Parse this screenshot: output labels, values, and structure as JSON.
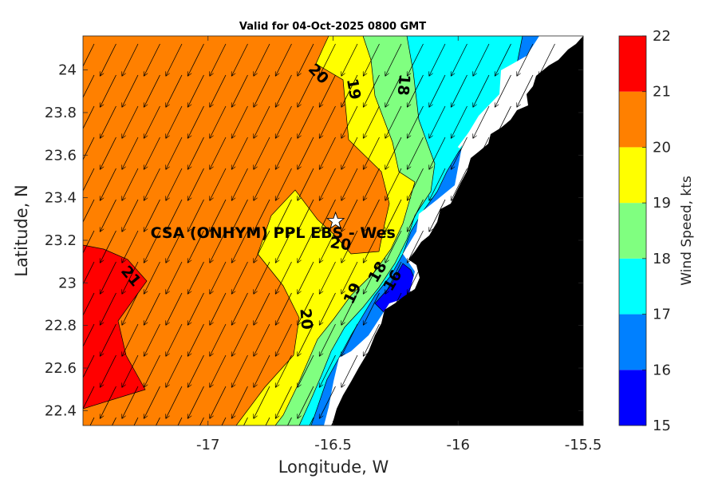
{
  "title": "Valid for 04-Oct-2025 0800 GMT",
  "xlabel": "Longitude, W",
  "ylabel": "Latitude, N",
  "x_ticks": [
    "-17",
    "-16.5",
    "-16",
    "-15.5"
  ],
  "y_ticks": [
    "24",
    "23.8",
    "23.6",
    "23.4",
    "23.2",
    "23",
    "22.8",
    "22.6",
    "22.4"
  ],
  "colorbar": {
    "title": "Wind Speed, kts",
    "ticks": [
      "22",
      "21",
      "20",
      "19",
      "18",
      "17",
      "16",
      "15"
    ],
    "levels": [
      {
        "from": 15,
        "to": 16,
        "color": "#0000ff"
      },
      {
        "from": 16,
        "to": 17,
        "color": "#0080ff"
      },
      {
        "from": 17,
        "to": 18,
        "color": "#00ffff"
      },
      {
        "from": 18,
        "to": 19,
        "color": "#80ff80"
      },
      {
        "from": 19,
        "to": 20,
        "color": "#ffff00"
      },
      {
        "from": 20,
        "to": 21,
        "color": "#ff8000"
      },
      {
        "from": 21,
        "to": 22,
        "color": "#ff0000"
      }
    ]
  },
  "site": {
    "label": "CSA (ONHYM) PPL EBS  - Wes",
    "lon": -16.49,
    "lat": 23.29
  },
  "contour_labels": [
    {
      "text": "20",
      "lon": -16.56,
      "lat": 23.98,
      "rot": 45
    },
    {
      "text": "19",
      "lon": -16.42,
      "lat": 23.91,
      "rot": 80
    },
    {
      "text": "18",
      "lon": -16.22,
      "lat": 23.93,
      "rot": 95
    },
    {
      "text": "20",
      "lon": -16.47,
      "lat": 23.18,
      "rot": 8
    },
    {
      "text": "21",
      "lon": -17.31,
      "lat": 23.03,
      "rot": 50
    },
    {
      "text": "20",
      "lon": -16.61,
      "lat": 22.83,
      "rot": 85
    },
    {
      "text": "19",
      "lon": -16.42,
      "lat": 22.95,
      "rot": -65
    },
    {
      "text": "18",
      "lon": -16.32,
      "lat": 23.05,
      "rot": -60
    },
    {
      "text": "16",
      "lon": -16.26,
      "lat": 23.01,
      "rot": -60
    }
  ],
  "map": {
    "lon_range": [
      -17.5,
      -15.5
    ],
    "lat_range": [
      22.33,
      24.16
    ],
    "land_color": "#000000",
    "nodata_color": "#ffffff",
    "wind_direction": "from NNE (arrows pointing SSW)"
  },
  "chart_data": {
    "type": "heatmap",
    "title": "Valid for 04-Oct-2025 0800 GMT",
    "xlabel": "Longitude, W",
    "ylabel": "Latitude, N",
    "xlim": [
      -17.5,
      -15.5
    ],
    "ylim": [
      22.33,
      24.16
    ],
    "colorbar_label": "Wind Speed, kts",
    "colorbar_range": [
      15,
      22
    ],
    "contour_levels": [
      16,
      17,
      18,
      19,
      20,
      21
    ]
  }
}
